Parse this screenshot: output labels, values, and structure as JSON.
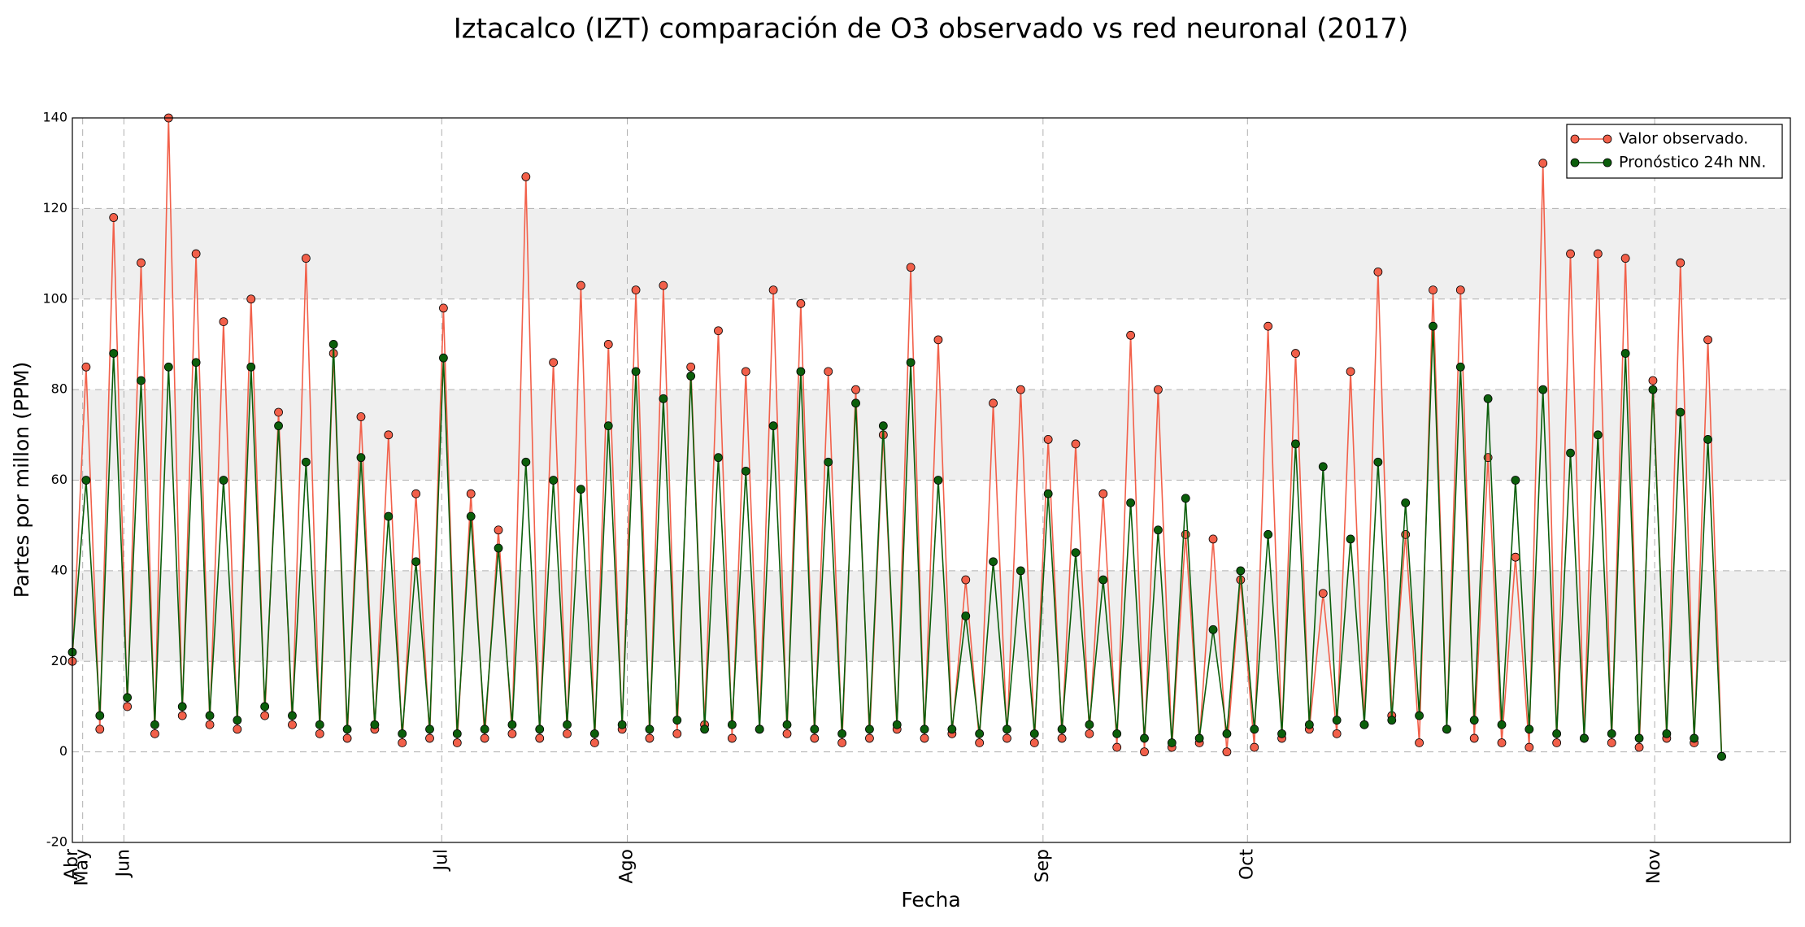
{
  "chart_data": {
    "type": "line",
    "title": "Iztacalco (IZT) comparación de O3 observado vs red neuronal (2017)",
    "xlabel": "Fecha",
    "ylabel": "Partes por millon (PPM)",
    "x": [
      0,
      8,
      16,
      24,
      32,
      40,
      48,
      56,
      64,
      72,
      80,
      88,
      96,
      104,
      112,
      120,
      128,
      136,
      144,
      152,
      160,
      168,
      176,
      184,
      192,
      200,
      208,
      216,
      224,
      232,
      240,
      248,
      256,
      264,
      272,
      280,
      288,
      296,
      304,
      312,
      320,
      328,
      336,
      344,
      352,
      360,
      368,
      376,
      384,
      392,
      400,
      408,
      416,
      424,
      432,
      440,
      448,
      456,
      464,
      472,
      480,
      488,
      496,
      504,
      512,
      520,
      528,
      536,
      544,
      552,
      560,
      568,
      576,
      584,
      592,
      600,
      608,
      616,
      624,
      632,
      640,
      648,
      656,
      664,
      672,
      680,
      688,
      696,
      704,
      712,
      720,
      728,
      736,
      744,
      752,
      760,
      768,
      776,
      784,
      792,
      800,
      808,
      816,
      824,
      832,
      840,
      848,
      856,
      864,
      872,
      880,
      888,
      896,
      904,
      912,
      920,
      928,
      936,
      944,
      952,
      960
    ],
    "series": [
      {
        "name": "Valor observado.",
        "color": "#f2604a",
        "values": [
          20,
          85,
          5,
          118,
          10,
          108,
          4,
          140,
          8,
          110,
          6,
          95,
          5,
          100,
          8,
          75,
          6,
          109,
          4,
          88,
          3,
          74,
          5,
          70,
          2,
          57,
          3,
          98,
          2,
          57,
          3,
          49,
          4,
          127,
          3,
          86,
          4,
          103,
          2,
          90,
          5,
          102,
          3,
          103,
          4,
          85,
          6,
          93,
          3,
          84,
          5,
          102,
          4,
          99,
          3,
          84,
          2,
          80,
          3,
          70,
          5,
          107,
          3,
          91,
          4,
          38,
          2,
          77,
          3,
          80,
          2,
          69,
          3,
          68,
          4,
          57,
          1,
          92,
          0,
          80,
          1,
          48,
          2,
          47,
          0,
          38,
          1,
          94,
          3,
          88,
          5,
          35,
          4,
          84,
          6,
          106,
          8,
          48,
          2,
          102,
          5,
          102,
          3,
          65,
          2,
          43,
          1,
          130,
          2,
          110,
          3,
          110,
          2,
          109,
          1,
          82,
          3,
          108,
          2,
          91,
          -1
        ]
      },
      {
        "name": "Pronóstico 24h NN.",
        "color": "#0b5e0b",
        "values": [
          22,
          60,
          8,
          88,
          12,
          82,
          6,
          85,
          10,
          86,
          8,
          60,
          7,
          85,
          10,
          72,
          8,
          64,
          6,
          90,
          5,
          65,
          6,
          52,
          4,
          42,
          5,
          87,
          4,
          52,
          5,
          45,
          6,
          64,
          5,
          60,
          6,
          58,
          4,
          72,
          6,
          84,
          5,
          78,
          7,
          83,
          5,
          65,
          6,
          62,
          5,
          72,
          6,
          84,
          5,
          64,
          4,
          77,
          5,
          72,
          6,
          86,
          5,
          60,
          5,
          30,
          4,
          42,
          5,
          40,
          4,
          57,
          5,
          44,
          6,
          38,
          4,
          55,
          3,
          49,
          2,
          56,
          3,
          27,
          4,
          40,
          5,
          48,
          4,
          68,
          6,
          63,
          7,
          47,
          6,
          64,
          7,
          55,
          8,
          94,
          5,
          85,
          7,
          78,
          6,
          60,
          5,
          80,
          4,
          66,
          3,
          70,
          4,
          88,
          3,
          80,
          4,
          75,
          3,
          69,
          -1
        ]
      }
    ],
    "xlim": [
      0,
      1000
    ],
    "xticks": [
      {
        "value": 0,
        "label": "Abr"
      },
      {
        "value": 6,
        "label": "May"
      },
      {
        "value": 30,
        "label": "Jun"
      },
      {
        "value": 215,
        "label": "Jul"
      },
      {
        "value": 323,
        "label": "Ago"
      },
      {
        "value": 565,
        "label": "Sep"
      },
      {
        "value": 684,
        "label": "Oct"
      },
      {
        "value": 921,
        "label": "Nov"
      }
    ],
    "ylim": [
      -20,
      140
    ],
    "yticks": [
      -20,
      0,
      20,
      40,
      60,
      80,
      100,
      120,
      140
    ],
    "grid": true,
    "legend": "upper right"
  }
}
